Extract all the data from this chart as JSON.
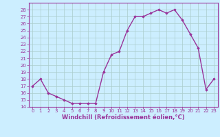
{
  "x": [
    0,
    1,
    2,
    3,
    4,
    5,
    6,
    7,
    8,
    9,
    10,
    11,
    12,
    13,
    14,
    15,
    16,
    17,
    18,
    19,
    20,
    21,
    22,
    23
  ],
  "y": [
    17,
    18,
    16,
    15.5,
    15,
    14.5,
    14.5,
    14.5,
    14.5,
    19,
    21.5,
    22,
    25,
    27,
    27,
    27.5,
    28,
    27.5,
    28,
    26.5,
    24.5,
    22.5,
    16.5,
    18
  ],
  "line_color": "#993399",
  "marker": "D",
  "marker_size": 1.8,
  "bg_color": "#cceeff",
  "grid_color": "#aacccc",
  "xlabel": "Windchill (Refroidissement éolien,°C)",
  "xlabel_color": "#993399",
  "tick_color": "#993399",
  "spine_color": "#993399",
  "ylim": [
    14,
    29
  ],
  "xlim": [
    -0.5,
    23.5
  ],
  "yticks": [
    14,
    15,
    16,
    17,
    18,
    19,
    20,
    21,
    22,
    23,
    24,
    25,
    26,
    27,
    28
  ],
  "xticks": [
    0,
    1,
    2,
    3,
    4,
    5,
    6,
    7,
    8,
    9,
    10,
    11,
    12,
    13,
    14,
    15,
    16,
    17,
    18,
    19,
    20,
    21,
    22,
    23
  ],
  "linewidth": 1.0,
  "tick_fontsize": 5,
  "xlabel_fontsize": 6,
  "xlabel_fontweight": "bold"
}
